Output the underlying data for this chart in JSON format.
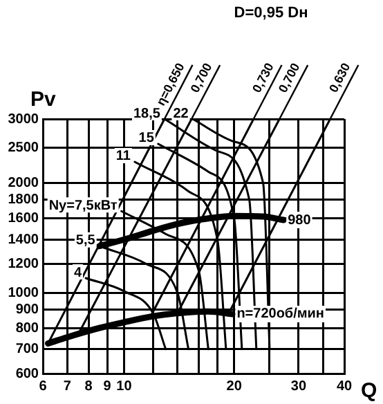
{
  "chart_data": {
    "type": "line",
    "title": "D=0,95 Dн",
    "xlabel": "Q",
    "ylabel": "Pv",
    "log": "xy",
    "grid": true,
    "legend": false,
    "marker": "none",
    "line_style": "solid",
    "xlim": [
      6,
      40
    ],
    "ylim": [
      600,
      3000
    ],
    "xticks": [
      6,
      7,
      8,
      9,
      10,
      {
        "value": 12,
        "label": null
      },
      {
        "value": 14,
        "label": null
      },
      {
        "value": 16,
        "label": null
      },
      {
        "value": 18,
        "label": null
      },
      20,
      {
        "value": 25,
        "label": null
      },
      30,
      {
        "value": 35,
        "label": null
      },
      40
    ],
    "yticks": [
      600,
      700,
      800,
      900,
      1000,
      1200,
      1400,
      1600,
      1800,
      2000,
      2500,
      3000
    ],
    "series": [
      {
        "name": "980",
        "color": "#000000",
        "x": [
          8.56,
          10,
          12,
          14.2,
          17,
          20,
          24,
          27.3
        ],
        "values": [
          1343,
          1400,
          1480,
          1550,
          1600,
          1625,
          1620,
          1584
        ]
      },
      {
        "name": "n=720об/мин",
        "color": "#000000",
        "x": [
          6.2,
          7,
          8.56,
          10,
          12,
          14.2,
          17,
          19.8
        ],
        "values": [
          726,
          755,
          800,
          830,
          862,
          880,
          888,
          874
        ]
      },
      {
        "name": "4",
        "color": "#000000",
        "x": [
          7.86,
          10,
          12,
          13
        ],
        "values": [
          1097,
          1010,
          880,
          700
        ]
      },
      {
        "name": "5,5",
        "color": "#000000",
        "x": [
          8.56,
          11.5,
          14,
          15
        ],
        "values": [
          1343,
          1200,
          1000,
          700
        ]
      },
      {
        "name": "Ny=7,5кВт",
        "color": "#000000",
        "x": [
          9.84,
          13,
          16,
          17
        ],
        "values": [
          1675,
          1450,
          1150,
          700
        ]
      },
      {
        "name": "11",
        "color": "#000000",
        "x": [
          10.7,
          15,
          18,
          19
        ],
        "values": [
          2288,
          1900,
          1400,
          700
        ]
      },
      {
        "name": "15",
        "color": "#000000",
        "x": [
          12.4,
          17,
          20,
          21
        ],
        "values": [
          2563,
          2150,
          1600,
          700
        ]
      },
      {
        "name": "18,5",
        "color": "#000000",
        "x": [
          12.9,
          18,
          22,
          23
        ],
        "values": [
          3000,
          2450,
          1800,
          700
        ]
      },
      {
        "name": "22",
        "color": "#000000",
        "x": [
          15.4,
          20,
          24,
          25
        ],
        "values": [
          3000,
          2600,
          2000,
          700
        ]
      },
      {
        "name": "η=0,650",
        "color": "#000000",
        "x": [
          6.2,
          12.9
        ],
        "values": [
          726,
          3000
        ]
      },
      {
        "name": "0,700",
        "color": "#000000",
        "x": [
          7.5,
          15.3
        ],
        "values": [
          770,
          3000
        ]
      },
      {
        "name": "0,730",
        "color": "#000000",
        "x": [
          11.8,
          22.6
        ],
        "values": [
          858,
          3000
        ]
      },
      {
        "name": "0,700",
        "color": "#000000",
        "x": [
          14.0,
          26.6
        ],
        "values": [
          880,
          3000
        ]
      },
      {
        "name": "0,630",
        "color": "#000000",
        "x": [
          19.3,
          36.6
        ],
        "values": [
          876,
          3000
        ]
      }
    ]
  }
}
